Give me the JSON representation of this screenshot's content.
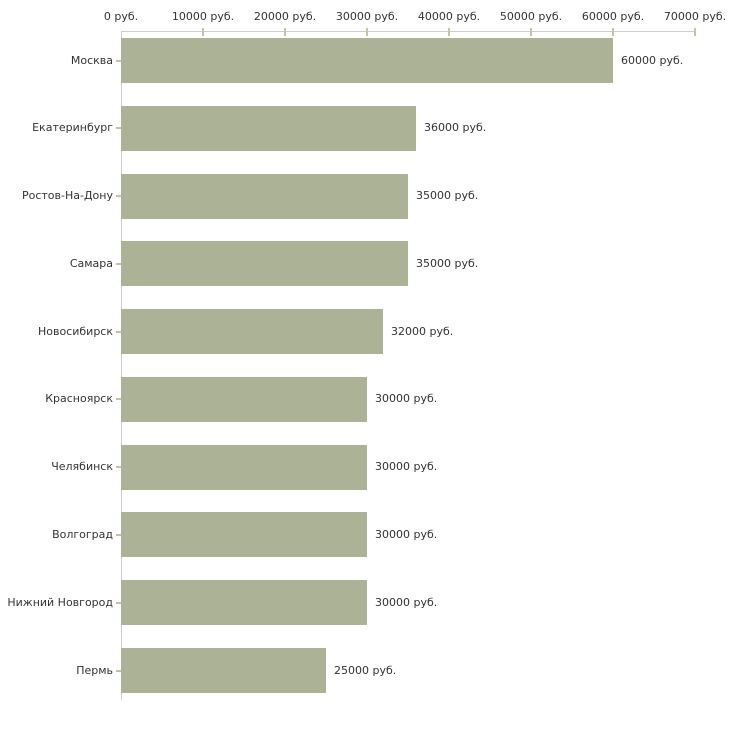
{
  "chart_data": {
    "type": "bar",
    "orientation": "horizontal",
    "title": "",
    "xlabel": "",
    "ylabel": "",
    "unit": "руб.",
    "categories": [
      "Москва",
      "Екатеринбург",
      "Ростов-На-Дону",
      "Самара",
      "Новосибирск",
      "Красноярск",
      "Челябинск",
      "Волгоград",
      "Нижний Новгород",
      "Пермь"
    ],
    "values": [
      60000,
      36000,
      35000,
      35000,
      32000,
      30000,
      30000,
      30000,
      30000,
      25000
    ],
    "value_labels": [
      "60000 руб.",
      "36000 руб.",
      "35000 руб.",
      "35000 руб.",
      "32000 руб.",
      "30000 руб.",
      "30000 руб.",
      "30000 руб.",
      "30000 руб.",
      "25000 руб."
    ],
    "x_ticks": [
      0,
      10000,
      20000,
      30000,
      40000,
      50000,
      60000,
      70000
    ],
    "x_tick_labels": [
      "0 руб.",
      "10000 руб.",
      "20000 руб.",
      "30000 руб.",
      "40000 руб.",
      "50000 руб.",
      "60000 руб.",
      "70000 руб."
    ],
    "xlim": [
      0,
      70000
    ],
    "grid": false,
    "legend": null,
    "colors": {
      "bar": "#abb295",
      "axis_line": "#cccccc",
      "tick_mark": "#c5c29e",
      "text": "#333333",
      "background": "#ffffff"
    }
  }
}
